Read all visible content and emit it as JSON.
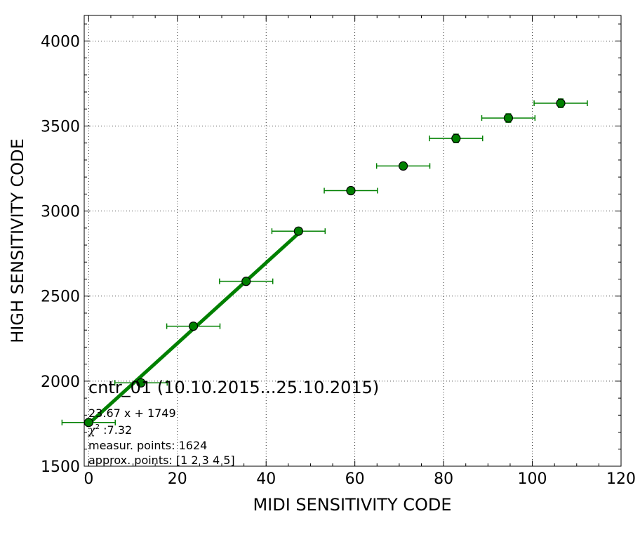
{
  "chart_data": {
    "type": "scatter",
    "title": "cntr_01 (10.10.2015...25.10.2015)",
    "xlabel": "MIDI SENSITIVITY CODE",
    "ylabel": "HIGH SENSITIVITY CODE",
    "xlim": [
      -1,
      120
    ],
    "ylim": [
      1500,
      4150
    ],
    "xticks": [
      0,
      20,
      40,
      60,
      80,
      100,
      120
    ],
    "yticks": [
      1500,
      2000,
      2500,
      3000,
      3500,
      4000
    ],
    "grid": true,
    "colors": {
      "series": "#008000",
      "marker_edge": "#000000",
      "fit_line": "#008000"
    },
    "series": [
      {
        "x": [
          0,
          11.8,
          23.6,
          35.5,
          47.3,
          59.1,
          70.9,
          82.8,
          94.6,
          106.4
        ],
        "y": [
          1757,
          1990,
          2323,
          2587,
          2882,
          3120,
          3265,
          3427,
          3547,
          3634
        ],
        "xerr": [
          6,
          5.9,
          6,
          6,
          6,
          6,
          6,
          6,
          6,
          6
        ],
        "yerr": [
          12,
          18,
          14,
          15,
          20,
          20,
          20,
          25,
          25,
          25
        ]
      }
    ],
    "fit_line": {
      "x": [
        0,
        47.3
      ],
      "y": [
        1749,
        2868.6
      ]
    },
    "annotations": {
      "equation": "23.67 x + 1749",
      "chi2_symbol": "χ",
      "chi2_sup": "2",
      "chi2_value": " :7.32",
      "measured": "measur. points: 1624",
      "approx": "approx. points: [1 2 3 4 5]"
    }
  }
}
